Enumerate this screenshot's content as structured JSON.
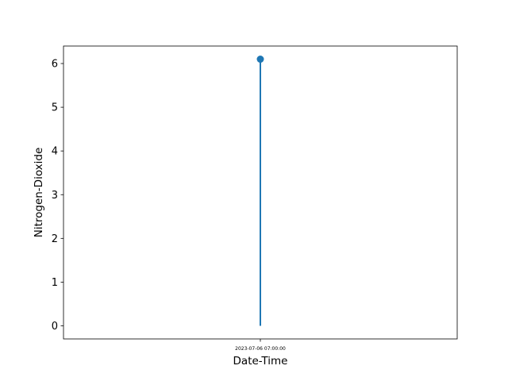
{
  "chart_data": {
    "type": "stem",
    "title": "",
    "xlabel": "Date-Time",
    "ylabel": "Nitrogen-Dioxide",
    "x": [
      "2023-07-06 07:00:00"
    ],
    "values": [
      6.1
    ],
    "ylim": [
      -0.3,
      6.4
    ],
    "yticks": [
      0,
      1,
      2,
      3,
      4,
      5,
      6
    ],
    "grid": false,
    "legend": "none",
    "color": "#1f77b4"
  }
}
